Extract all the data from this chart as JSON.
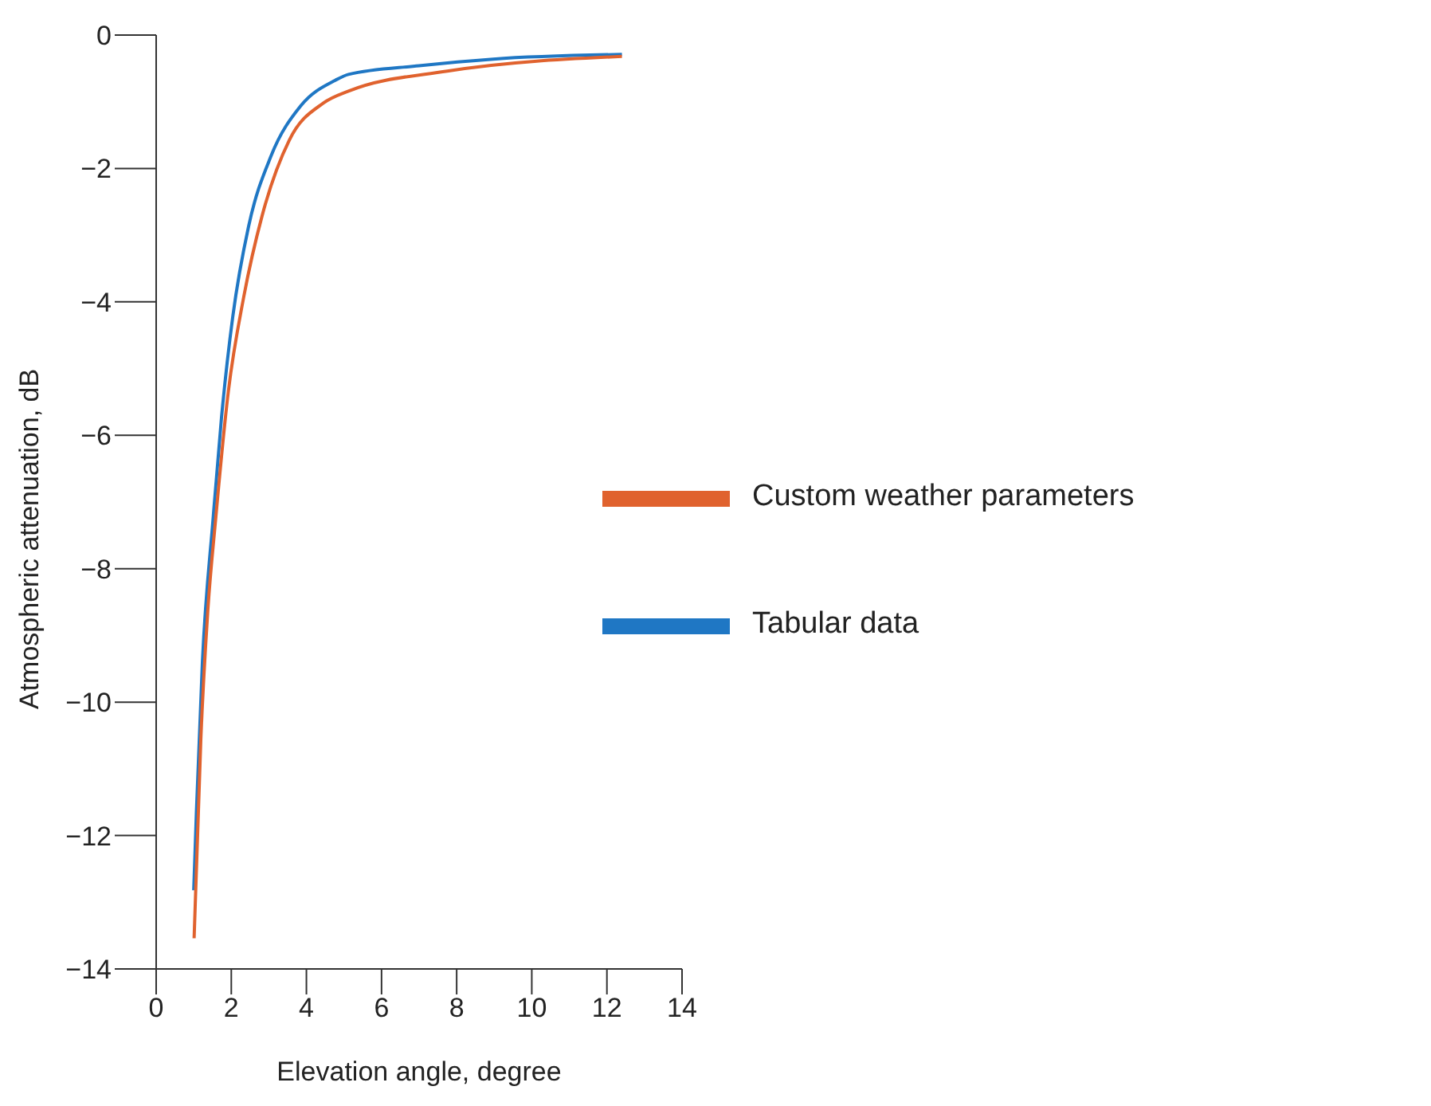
{
  "chart_data": {
    "type": "line",
    "xlabel": "Elevation angle, degree",
    "ylabel": "Atmospheric attenuation, dB",
    "xlim": [
      0,
      14
    ],
    "xticks": [
      0,
      2,
      4,
      6,
      8,
      10,
      12,
      14
    ],
    "ylim": [
      -14,
      0
    ],
    "yticks": [
      -14,
      -12,
      -10,
      -8,
      -6,
      -4,
      -2,
      0
    ],
    "grid": false,
    "legend": "right",
    "marker": "none",
    "line_style": "solid",
    "series": [
      {
        "name": "Tabular data",
        "color": "#1f77c4",
        "x": [
          1,
          1.07,
          1.23,
          1.52,
          1.74,
          2.04,
          2.46,
          3.06,
          3.85,
          4.76,
          5.12,
          7,
          8.97,
          12.4
        ],
        "values": [
          -12.82,
          -11.67,
          -9.41,
          -7.22,
          -5.73,
          -4.22,
          -2.87,
          -1.81,
          -1.06,
          -0.68,
          -0.59,
          -0.46,
          -0.36,
          -0.29
        ]
      },
      {
        "name": "Custom weather parameters",
        "color": "#e0622e",
        "x": [
          1.01,
          1.19,
          1.37,
          1.59,
          1.92,
          2.33,
          2.82,
          3.54,
          4.45,
          5.12,
          7.75,
          12.4
        ],
        "values": [
          -13.54,
          -10.54,
          -8.67,
          -7.22,
          -5.35,
          -3.93,
          -2.71,
          -1.58,
          -1.02,
          -0.84,
          -0.54,
          -0.32
        ]
      }
    ]
  }
}
